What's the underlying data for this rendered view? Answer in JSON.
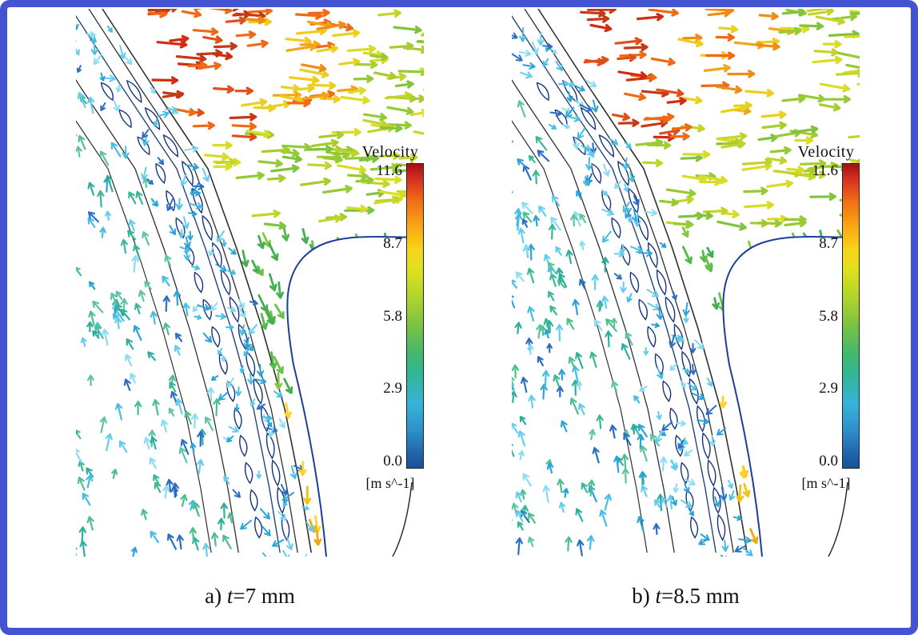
{
  "figure": {
    "type": "cfd-velocity-vector-field-comparison",
    "frame_color": "#4254d2",
    "panels": [
      {
        "id": "a",
        "caption": "a) t=7 mm",
        "caption_prefix": "a) ",
        "caption_symbol": "t",
        "caption_rest": "=7 mm",
        "colorbar": {
          "title": "Velocity",
          "units": "[m s^-1]",
          "ticks": [
            "11.6",
            "8.7",
            "5.8",
            "2.9",
            "0.0"
          ]
        }
      },
      {
        "id": "b",
        "caption": "b) t=8.5 mm",
        "caption_prefix": "b) ",
        "caption_symbol": "t",
        "caption_rest": "=8.5 mm",
        "colorbar": {
          "title": "Velocity",
          "units": "[m s^-1]",
          "ticks": [
            "11.6",
            "8.7",
            "5.8",
            "2.9",
            "0.0"
          ]
        }
      }
    ]
  },
  "palette": {
    "reds": [
      "#d42a12",
      "#e04f1a",
      "#c43a16",
      "#ef6a15"
    ],
    "oranges": [
      "#f08c16",
      "#f4a418",
      "#ef6a15"
    ],
    "yellows": [
      "#f2c91c",
      "#e8d020"
    ],
    "golds": [
      "#f4bf16",
      "#f0a913",
      "#ffd427"
    ],
    "yellow_greens": [
      "#a8cc2e",
      "#c2d42a",
      "#7fc43c",
      "#94ca33",
      "#d8dc25"
    ],
    "greens": [
      "#55b94a",
      "#6cc04a",
      "#43ae52",
      "#83c845"
    ],
    "cyans": [
      "#45bde4",
      "#63cdf0",
      "#2ba3d8",
      "#8adbf4",
      "#2b6ec6"
    ],
    "teals": [
      "#39b796",
      "#4cbf8c",
      "#2fae9e",
      "#5ec4a2"
    ]
  },
  "chart_data": [
    {
      "type": "heatmap",
      "subtype": "velocity-vector-field",
      "title": "Velocity",
      "caption": "a) t=7 mm",
      "parameter": {
        "name": "t",
        "value_mm": 7
      },
      "colorbar": {
        "label": "Velocity",
        "units": "[m s^-1]",
        "min": 0.0,
        "max": 11.6,
        "ticks": [
          11.6,
          8.7,
          5.8,
          2.9,
          0.0
        ]
      },
      "legend_position": "right",
      "description": "Velocity vectors of air flow around a rotating tire shoulder/tread cross-section. High velocity (red/orange, ~9-11.6 m/s) in the upper-left free stream, yellow-green (~6-9 m/s) streaming rightward over the tire, low velocity (cyan/blue, ~0-3 m/s) inside the tread grooves, teal recirculation (~3-5 m/s) in the lower-left interior, and a yellow high-speed band (~7-9 m/s) in the narrow channel between the lower tire surface and the white wheel-arch region."
    },
    {
      "type": "heatmap",
      "subtype": "velocity-vector-field",
      "title": "Velocity",
      "caption": "b) t=8.5 mm",
      "parameter": {
        "name": "t",
        "value_mm": 8.5
      },
      "colorbar": {
        "label": "Velocity",
        "units": "[m s^-1]",
        "min": 0.0,
        "max": 11.6,
        "ticks": [
          11.6,
          8.7,
          5.8,
          2.9,
          0.0
        ]
      },
      "legend_position": "right",
      "description": "Same flow visualization at tread depth t=8.5 mm; overall velocity distribution closely matches panel a."
    }
  ]
}
